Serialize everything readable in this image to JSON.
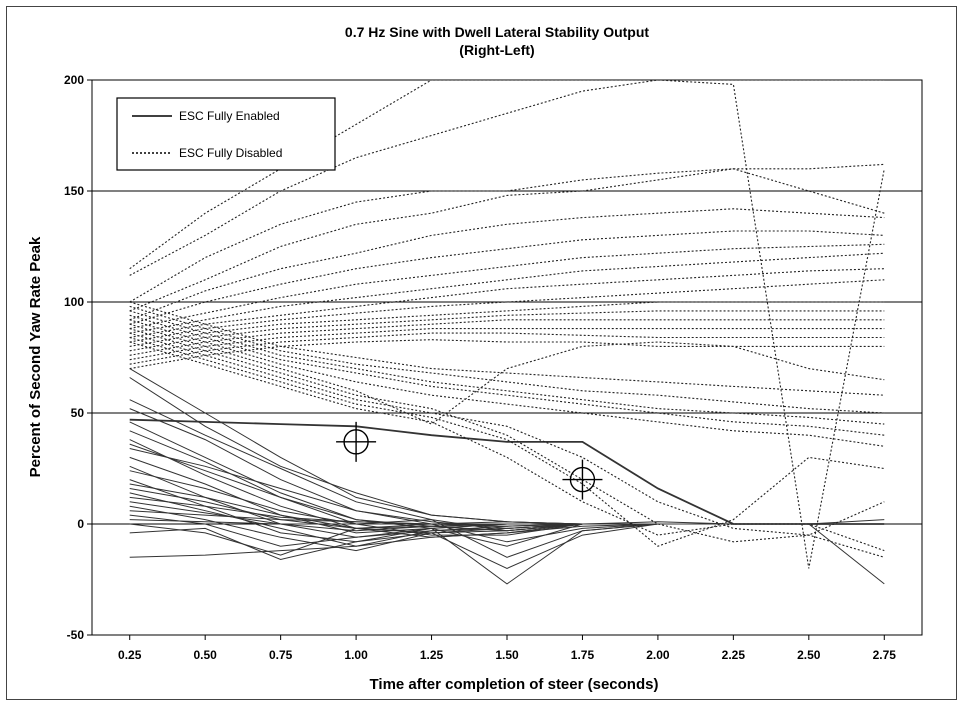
{
  "chart_data": {
    "type": "line",
    "title": "0.7 Hz Sine with Dwell Lateral Stability Output",
    "subtitle": "(Right-Left)",
    "xlabel": "Time after completion of steer (seconds)",
    "ylabel": "Percent of Second Yaw Rate Peak",
    "xlim": [
      0.25,
      2.75
    ],
    "ylim": [
      -50,
      200
    ],
    "x_ticks": [
      "0.25",
      "0.50",
      "0.75",
      "1.00",
      "1.25",
      "1.50",
      "1.75",
      "2.00",
      "2.25",
      "2.50",
      "2.75"
    ],
    "y_ticks": [
      "-50",
      "0",
      "50",
      "100",
      "150",
      "200"
    ],
    "grid": "horizontal",
    "legend": {
      "placement": "top-left",
      "entries": [
        {
          "label": "ESC Fully Enabled",
          "style": "solid"
        },
        {
          "label": "ESC Fully Disabled",
          "style": "dotted"
        }
      ]
    },
    "x": [
      0.25,
      0.5,
      0.75,
      1.0,
      1.25,
      1.5,
      1.75,
      2.0,
      2.25,
      2.5,
      2.75
    ],
    "groups": [
      {
        "name": "ESC Fully Enabled",
        "style": "solid",
        "series": [
          {
            "values": [
              47,
              46,
              45,
              44,
              40,
              37,
              37,
              16,
              0,
              0,
              0
            ]
          },
          {
            "values": [
              70,
              50,
              30,
              12,
              4,
              1,
              0,
              0,
              0,
              0,
              0
            ]
          },
          {
            "values": [
              56,
              40,
              25,
              10,
              2,
              -3,
              0,
              0,
              0,
              0,
              0
            ]
          },
          {
            "values": [
              52,
              38,
              20,
              6,
              0,
              -8,
              -2,
              0,
              0,
              0,
              0
            ]
          },
          {
            "values": [
              46,
              30,
              14,
              2,
              -2,
              -27,
              -3,
              0,
              0,
              0,
              0
            ]
          },
          {
            "values": [
              42,
              28,
              12,
              0,
              -5,
              -5,
              0,
              0,
              0,
              0,
              0
            ]
          },
          {
            "values": [
              38,
              22,
              8,
              -2,
              -4,
              -20,
              -5,
              0,
              0,
              0,
              0
            ]
          },
          {
            "values": [
              30,
              18,
              4,
              -4,
              -2,
              -10,
              0,
              0,
              0,
              0,
              0
            ]
          },
          {
            "values": [
              26,
              12,
              0,
              -6,
              -3,
              -2,
              0,
              0,
              0,
              0,
              0
            ]
          },
          {
            "values": [
              20,
              8,
              -4,
              -8,
              -4,
              -3,
              0,
              0,
              0,
              0,
              0
            ]
          },
          {
            "values": [
              14,
              6,
              -2,
              -10,
              -3,
              -1,
              0,
              0,
              0,
              0,
              0
            ]
          },
          {
            "values": [
              8,
              2,
              -6,
              -12,
              -4,
              -2,
              0,
              0,
              0,
              0,
              0
            ]
          },
          {
            "values": [
              4,
              0,
              -10,
              -6,
              -2,
              0,
              0,
              0,
              0,
              0,
              0
            ]
          },
          {
            "values": [
              0,
              -4,
              -14,
              -2,
              0,
              -1,
              0,
              0,
              0,
              0,
              0
            ]
          },
          {
            "values": [
              -4,
              -2,
              -16,
              -8,
              -2,
              0,
              0,
              0,
              0,
              0,
              0
            ]
          },
          {
            "values": [
              -15,
              -14,
              -12,
              -10,
              -6,
              -4,
              -1,
              0,
              0,
              0,
              0
            ]
          },
          {
            "values": [
              36,
              24,
              12,
              2,
              -1,
              -3,
              0,
              0,
              0,
              0,
              0
            ]
          },
          {
            "values": [
              18,
              12,
              4,
              -2,
              -1,
              0,
              0,
              0,
              0,
              0,
              0
            ]
          },
          {
            "values": [
              10,
              5,
              0,
              -3,
              -1,
              0,
              0,
              0,
              0,
              0,
              0
            ]
          },
          {
            "values": [
              2,
              1,
              0,
              0,
              0,
              0,
              0,
              0,
              0,
              0,
              0
            ]
          },
          {
            "values": [
              24,
              16,
              6,
              0,
              2,
              -15,
              -3,
              0,
              0,
              0,
              0
            ]
          },
          {
            "values": [
              66,
              44,
              26,
              14,
              4,
              1,
              0,
              1,
              0,
              0,
              0
            ]
          },
          {
            "values": [
              12,
              8,
              3,
              1,
              0,
              0,
              0,
              0,
              0,
              0,
              -27
            ]
          },
          {
            "values": [
              6,
              4,
              2,
              1,
              0,
              1,
              0,
              0,
              0,
              0,
              2
            ]
          },
          {
            "values": [
              34,
              26,
              16,
              6,
              1,
              -2,
              0,
              0,
              0,
              0,
              0
            ]
          },
          {
            "values": [
              16,
              10,
              2,
              -2,
              -6,
              -4,
              0,
              0,
              0,
              0,
              0
            ]
          }
        ]
      },
      {
        "name": "ESC Fully Disabled",
        "style": "dotted",
        "series": [
          {
            "values": [
              115,
              140,
              160,
              180,
              200,
              200,
              200,
              200,
              200,
              200,
              200
            ]
          },
          {
            "values": [
              112,
              130,
              150,
              165,
              175,
              185,
              195,
              200,
              198,
              -20,
              160
            ]
          },
          {
            "values": [
              100,
              120,
              135,
              145,
              150,
              150,
              155,
              158,
              160,
              160,
              162
            ]
          },
          {
            "values": [
              96,
              110,
              125,
              135,
              140,
              148,
              150,
              155,
              160,
              150,
              140
            ]
          },
          {
            "values": [
              92,
              105,
              115,
              122,
              130,
              135,
              138,
              140,
              142,
              140,
              138
            ]
          },
          {
            "values": [
              90,
              100,
              108,
              115,
              120,
              124,
              128,
              130,
              132,
              132,
              130
            ]
          },
          {
            "values": [
              88,
              95,
              102,
              108,
              112,
              116,
              120,
              122,
              124,
              125,
              126
            ]
          },
          {
            "values": [
              86,
              92,
              98,
              102,
              106,
              110,
              114,
              116,
              118,
              120,
              122
            ]
          },
          {
            "values": [
              84,
              90,
              94,
              98,
              102,
              106,
              108,
              110,
              112,
              114,
              115
            ]
          },
          {
            "values": [
              82,
              88,
              92,
              95,
              98,
              100,
              102,
              104,
              106,
              108,
              110
            ]
          },
          {
            "values": [
              80,
              86,
              90,
              92,
              94,
              96,
              98,
              100,
              100,
              100,
              100
            ]
          },
          {
            "values": [
              78,
              84,
              88,
              90,
              92,
              94,
              95,
              96,
              96,
              96,
              96
            ]
          },
          {
            "values": [
              76,
              82,
              86,
              88,
              90,
              92,
              92,
              92,
              92,
              92,
              92
            ]
          },
          {
            "values": [
              74,
              80,
              84,
              86,
              88,
              88,
              88,
              88,
              88,
              88,
              88
            ]
          },
          {
            "values": [
              72,
              78,
              82,
              84,
              86,
              86,
              85,
              84,
              84,
              84,
              84
            ]
          },
          {
            "values": [
              70,
              76,
              80,
              82,
              83,
              82,
              82,
              80,
              80,
              80,
              80
            ]
          },
          {
            "values": [
              100,
              90,
              80,
              75,
              70,
              68,
              66,
              64,
              62,
              60,
              58
            ]
          },
          {
            "values": [
              98,
              88,
              78,
              72,
              68,
              64,
              60,
              58,
              55,
              52,
              50
            ]
          },
          {
            "values": [
              96,
              86,
              76,
              70,
              64,
              60,
              56,
              52,
              50,
              48,
              45
            ]
          },
          {
            "values": [
              94,
              84,
              74,
              68,
              62,
              58,
              54,
              50,
              46,
              44,
              40
            ]
          },
          {
            "values": [
              92,
              82,
              72,
              64,
              58,
              54,
              50,
              46,
              42,
              40,
              35
            ]
          },
          {
            "values": [
              90,
              80,
              70,
              60,
              45,
              70,
              80,
              82,
              80,
              70,
              65
            ]
          },
          {
            "values": [
              88,
              78,
              68,
              58,
              52,
              40,
              20,
              0,
              -8,
              -5,
              -15
            ]
          },
          {
            "values": [
              86,
              76,
              66,
              56,
              50,
              44,
              30,
              10,
              -2,
              -5,
              10
            ]
          },
          {
            "values": [
              84,
              74,
              64,
              54,
              48,
              38,
              18,
              -10,
              2,
              30,
              25
            ]
          },
          {
            "values": [
              82,
              72,
              62,
              52,
              46,
              30,
              10,
              -5,
              0,
              0,
              -12
            ]
          }
        ]
      }
    ],
    "markers": [
      {
        "x": 1.0,
        "y": 37,
        "shape": "crosshair"
      },
      {
        "x": 1.75,
        "y": 20,
        "shape": "crosshair"
      }
    ]
  }
}
